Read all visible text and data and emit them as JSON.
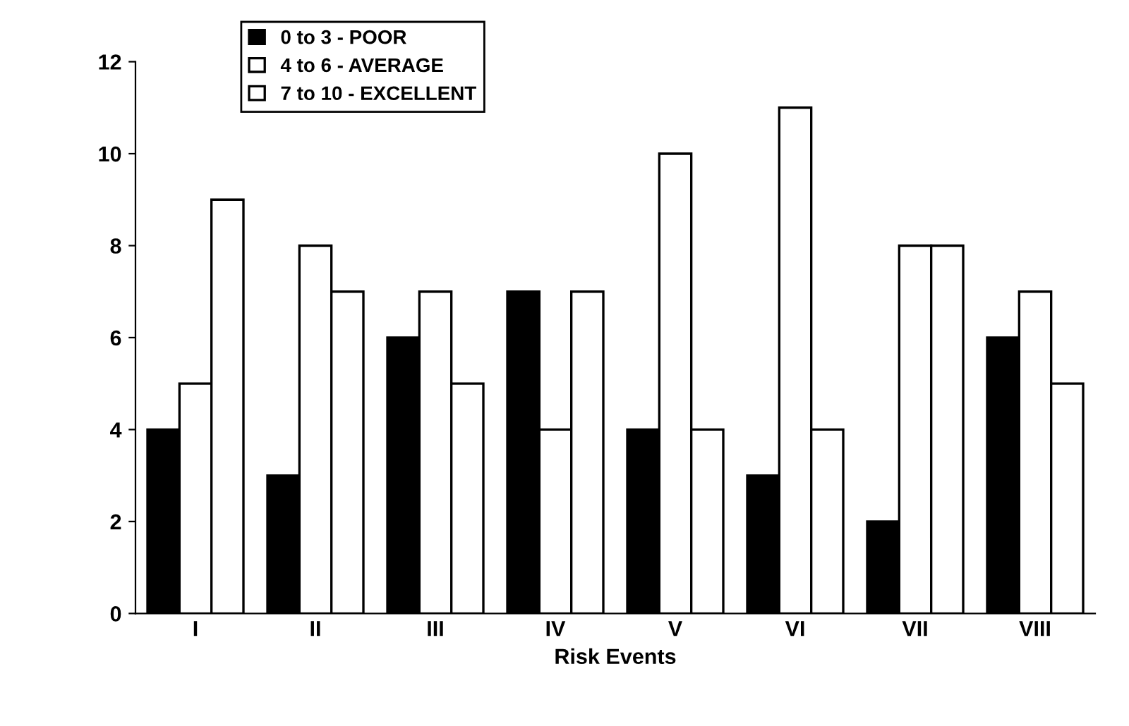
{
  "chart_data": {
    "type": "bar",
    "xlabel": "Risk Events",
    "categories": [
      "I",
      "II",
      "III",
      "IV",
      "V",
      "VI",
      "VII",
      "VIII"
    ],
    "series": [
      {
        "name": "0 to 3 - POOR",
        "color": "#000000",
        "values": [
          4,
          3,
          6,
          7,
          4,
          3,
          2,
          6
        ]
      },
      {
        "name": "4 to 6 - AVERAGE",
        "color": "#ffffff",
        "values": [
          5,
          8,
          7,
          4,
          10,
          11,
          8,
          7
        ]
      },
      {
        "name": "7 to 10 - EXCELLENT",
        "color": "#ffffff",
        "values": [
          9,
          7,
          5,
          7,
          4,
          4,
          8,
          5
        ]
      }
    ],
    "ylim": [
      0,
      12
    ],
    "yticks": [
      0,
      2,
      4,
      6,
      8,
      10,
      12
    ],
    "grid": false,
    "legend": "top left"
  }
}
